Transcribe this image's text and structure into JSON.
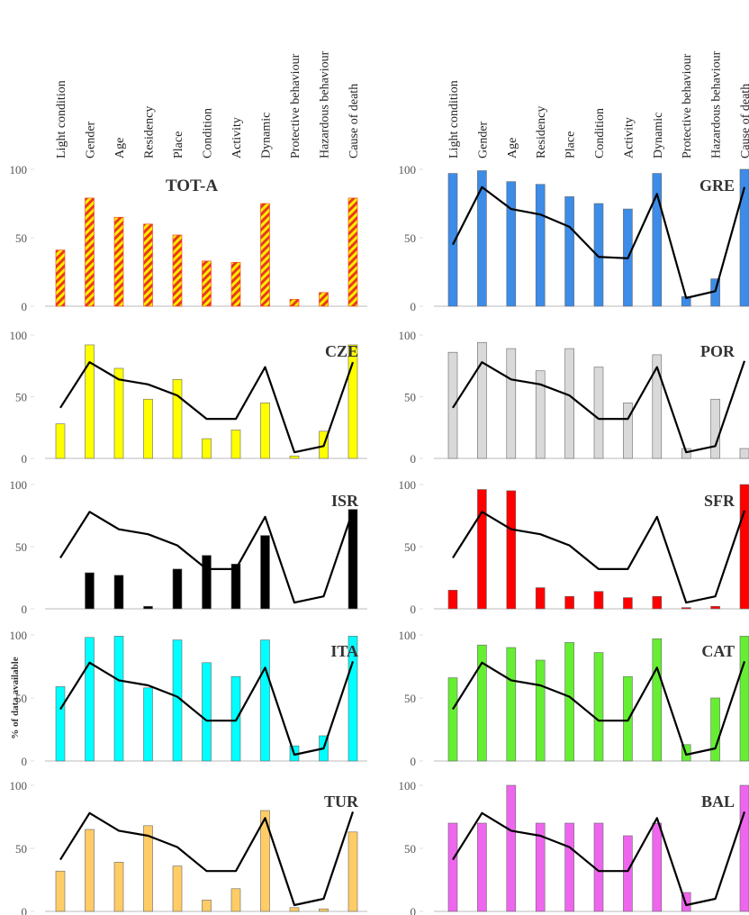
{
  "chart_data": [
    {
      "type": "bar",
      "title": "TOT-A",
      "title_color": "#000000",
      "categories": [
        "Light condition",
        "Gender",
        "Age",
        "Residency",
        "Place",
        "Condition",
        "Activity",
        "Dynamic",
        "Protective behaviour",
        "Hazardous behaviour",
        "Cause of death"
      ],
      "series": [
        {
          "type": "bar",
          "color": "#ffee00",
          "hatch_color": "#e83a1c",
          "values": [
            41,
            79,
            65,
            60,
            52,
            33,
            32,
            75,
            5,
            10,
            79
          ]
        }
      ],
      "ylim": [
        0,
        100
      ],
      "yticks": [
        0,
        50,
        100
      ]
    },
    {
      "type": "bar",
      "title": "GRE",
      "title_color": "#808080",
      "categories": [
        "Light condition",
        "Gender",
        "Age",
        "Residency",
        "Place",
        "Condition",
        "Activity",
        "Dynamic",
        "Protective behaviour",
        "Hazardous behaviour",
        "Cause of death"
      ],
      "series": [
        {
          "type": "bar",
          "color": "#3c8ce8",
          "values": [
            97,
            99,
            91,
            89,
            80,
            75,
            71,
            97,
            7,
            20,
            100
          ]
        },
        {
          "type": "line",
          "color": "#000000",
          "values": [
            45,
            87,
            71,
            67,
            58,
            36,
            35,
            82,
            6,
            11,
            87
          ]
        }
      ],
      "ylim": [
        0,
        100
      ],
      "yticks": [
        0,
        50,
        100
      ]
    },
    {
      "type": "bar",
      "title": "CZE",
      "title_color": "#808080",
      "series": [
        {
          "type": "bar",
          "color": "#ffff00",
          "values": [
            28,
            92,
            73,
            48,
            64,
            16,
            23,
            45,
            2,
            22,
            92
          ]
        },
        {
          "type": "line",
          "color": "#000000",
          "values": [
            41,
            78,
            64,
            60,
            51,
            32,
            32,
            74,
            5,
            10,
            78
          ]
        }
      ],
      "ylim": [
        0,
        100
      ],
      "yticks": [
        0,
        50,
        100
      ]
    },
    {
      "type": "bar",
      "title": "POR",
      "title_color": "#000000",
      "series": [
        {
          "type": "bar",
          "color": "#d9d9d9",
          "values": [
            86,
            94,
            89,
            71,
            89,
            74,
            45,
            84,
            8,
            48,
            8
          ]
        },
        {
          "type": "line",
          "color": "#000000",
          "values": [
            41,
            78,
            64,
            60,
            51,
            32,
            32,
            74,
            5,
            10,
            79
          ]
        }
      ],
      "ylim": [
        0,
        100
      ],
      "yticks": [
        0,
        50,
        100
      ]
    },
    {
      "type": "bar",
      "title": "ISR",
      "title_color": "#000000",
      "series": [
        {
          "type": "bar",
          "color": "#000000",
          "values": [
            null,
            29,
            27,
            2,
            32,
            43,
            36,
            59,
            null,
            null,
            80
          ]
        },
        {
          "type": "line",
          "color": "#000000",
          "values": [
            41,
            78,
            64,
            60,
            51,
            32,
            32,
            74,
            5,
            10,
            79
          ]
        }
      ],
      "ylim": [
        0,
        100
      ],
      "yticks": [
        0,
        50,
        100
      ]
    },
    {
      "type": "bar",
      "title": "SFR",
      "title_color": "#000000",
      "series": [
        {
          "type": "bar",
          "color": "#ff0000",
          "values": [
            15,
            96,
            95,
            17,
            10,
            14,
            9,
            10,
            1,
            2,
            100
          ]
        },
        {
          "type": "line",
          "color": "#000000",
          "values": [
            41,
            78,
            64,
            60,
            51,
            32,
            32,
            74,
            5,
            10,
            79
          ]
        }
      ],
      "ylim": [
        0,
        100
      ],
      "yticks": [
        0,
        50,
        100
      ]
    },
    {
      "type": "bar",
      "title": "ITA",
      "title_color": "#000000",
      "ylabel": "% of data available",
      "series": [
        {
          "type": "bar",
          "color": "#00ffff",
          "values": [
            59,
            98,
            99,
            58,
            96,
            78,
            67,
            96,
            12,
            20,
            99
          ]
        },
        {
          "type": "line",
          "color": "#000000",
          "values": [
            41,
            78,
            64,
            60,
            51,
            32,
            32,
            74,
            5,
            10,
            79
          ]
        }
      ],
      "ylim": [
        0,
        100
      ],
      "yticks": [
        0,
        50,
        100
      ]
    },
    {
      "type": "bar",
      "title": "CAT",
      "title_color": "#000000",
      "series": [
        {
          "type": "bar",
          "color": "#66ee33",
          "values": [
            66,
            92,
            90,
            80,
            94,
            86,
            67,
            97,
            13,
            50,
            99
          ]
        },
        {
          "type": "line",
          "color": "#000000",
          "values": [
            41,
            78,
            64,
            60,
            51,
            32,
            32,
            74,
            5,
            10,
            79
          ]
        }
      ],
      "ylim": [
        0,
        100
      ],
      "yticks": [
        0,
        50,
        100
      ]
    },
    {
      "type": "bar",
      "title": "TUR",
      "title_color": "#000000",
      "series": [
        {
          "type": "bar",
          "color": "#ffcc66",
          "values": [
            32,
            65,
            39,
            68,
            36,
            9,
            18,
            80,
            3,
            2,
            63
          ]
        },
        {
          "type": "line",
          "color": "#000000",
          "values": [
            41,
            78,
            64,
            60,
            51,
            32,
            32,
            74,
            5,
            10,
            79
          ]
        }
      ],
      "ylim": [
        0,
        100
      ],
      "yticks": [
        0,
        50,
        100
      ]
    },
    {
      "type": "bar",
      "title": "BAL",
      "title_color": "#000000",
      "series": [
        {
          "type": "bar",
          "color": "#ee66ee",
          "values": [
            70,
            70,
            100,
            70,
            70,
            70,
            60,
            70,
            15,
            null,
            100
          ]
        },
        {
          "type": "line",
          "color": "#000000",
          "values": [
            41,
            78,
            64,
            60,
            51,
            32,
            32,
            74,
            5,
            10,
            79
          ]
        }
      ],
      "ylim": [
        0,
        100
      ],
      "yticks": [
        0,
        50,
        100
      ]
    }
  ]
}
